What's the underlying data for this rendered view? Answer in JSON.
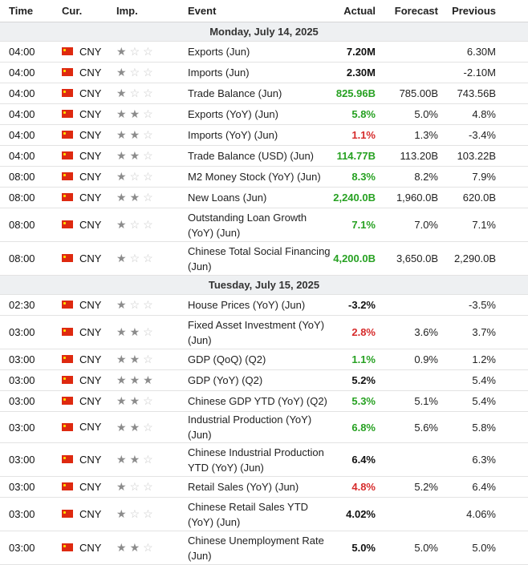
{
  "headers": {
    "time": "Time",
    "currency": "Cur.",
    "importance": "Imp.",
    "event": "Event",
    "actual": "Actual",
    "forecast": "Forecast",
    "previous": "Previous"
  },
  "colors": {
    "positive": "#27a122",
    "negative": "#d62b2b",
    "neutral": "#111111",
    "flag": "#de2910"
  },
  "icons": {
    "flag": "china-flag-icon",
    "star_full": "star-filled-icon",
    "star_empty": "star-empty-icon"
  },
  "days": [
    {
      "date": "Monday, July 14, 2025",
      "events": [
        {
          "time": "04:00",
          "currency": "CNY",
          "importance": 1,
          "event": "Exports (Jun)",
          "actual": "7.20M",
          "actual_status": "neutral",
          "forecast": "",
          "previous": "6.30M"
        },
        {
          "time": "04:00",
          "currency": "CNY",
          "importance": 1,
          "event": "Imports (Jun)",
          "actual": "2.30M",
          "actual_status": "neutral",
          "forecast": "",
          "previous": "-2.10M"
        },
        {
          "time": "04:00",
          "currency": "CNY",
          "importance": 1,
          "event": "Trade Balance (Jun)",
          "actual": "825.96B",
          "actual_status": "positive",
          "forecast": "785.00B",
          "previous": "743.56B"
        },
        {
          "time": "04:00",
          "currency": "CNY",
          "importance": 2,
          "event": "Exports (YoY) (Jun)",
          "actual": "5.8%",
          "actual_status": "positive",
          "forecast": "5.0%",
          "previous": "4.8%"
        },
        {
          "time": "04:00",
          "currency": "CNY",
          "importance": 2,
          "event": "Imports (YoY) (Jun)",
          "actual": "1.1%",
          "actual_status": "negative",
          "forecast": "1.3%",
          "previous": "-3.4%"
        },
        {
          "time": "04:00",
          "currency": "CNY",
          "importance": 2,
          "event": "Trade Balance (USD) (Jun)",
          "actual": "114.77B",
          "actual_status": "positive",
          "forecast": "113.20B",
          "previous": "103.22B"
        },
        {
          "time": "08:00",
          "currency": "CNY",
          "importance": 1,
          "event": "M2 Money Stock (YoY) (Jun)",
          "actual": "8.3%",
          "actual_status": "positive",
          "forecast": "8.2%",
          "previous": "7.9%"
        },
        {
          "time": "08:00",
          "currency": "CNY",
          "importance": 2,
          "event": "New Loans (Jun)",
          "actual": "2,240.0B",
          "actual_status": "positive",
          "forecast": "1,960.0B",
          "previous": "620.0B"
        },
        {
          "time": "08:00",
          "currency": "CNY",
          "importance": 1,
          "event": "Outstanding Loan Growth (YoY) (Jun)",
          "actual": "7.1%",
          "actual_status": "positive",
          "forecast": "7.0%",
          "previous": "7.1%"
        },
        {
          "time": "08:00",
          "currency": "CNY",
          "importance": 1,
          "event": "Chinese Total Social Financing (Jun)",
          "actual": "4,200.0B",
          "actual_status": "positive",
          "forecast": "3,650.0B",
          "previous": "2,290.0B"
        }
      ]
    },
    {
      "date": "Tuesday, July 15, 2025",
      "events": [
        {
          "time": "02:30",
          "currency": "CNY",
          "importance": 1,
          "event": "House Prices (YoY) (Jun)",
          "actual": "-3.2%",
          "actual_status": "neutral",
          "forecast": "",
          "previous": "-3.5%"
        },
        {
          "time": "03:00",
          "currency": "CNY",
          "importance": 2,
          "event": "Fixed Asset Investment (YoY) (Jun)",
          "actual": "2.8%",
          "actual_status": "negative",
          "forecast": "3.6%",
          "previous": "3.7%"
        },
        {
          "time": "03:00",
          "currency": "CNY",
          "importance": 2,
          "event": "GDP (QoQ) (Q2)",
          "actual": "1.1%",
          "actual_status": "positive",
          "forecast": "0.9%",
          "previous": "1.2%"
        },
        {
          "time": "03:00",
          "currency": "CNY",
          "importance": 3,
          "event": "GDP (YoY) (Q2)",
          "actual": "5.2%",
          "actual_status": "neutral",
          "forecast": "",
          "previous": "5.4%"
        },
        {
          "time": "03:00",
          "currency": "CNY",
          "importance": 2,
          "event": "Chinese GDP YTD (YoY) (Q2)",
          "actual": "5.3%",
          "actual_status": "positive",
          "forecast": "5.1%",
          "previous": "5.4%"
        },
        {
          "time": "03:00",
          "currency": "CNY",
          "importance": 2,
          "event": "Industrial Production (YoY) (Jun)",
          "actual": "6.8%",
          "actual_status": "positive",
          "forecast": "5.6%",
          "previous": "5.8%"
        },
        {
          "time": "03:00",
          "currency": "CNY",
          "importance": 2,
          "event": "Chinese Industrial Production YTD (YoY) (Jun)",
          "actual": "6.4%",
          "actual_status": "neutral",
          "forecast": "",
          "previous": "6.3%"
        },
        {
          "time": "03:00",
          "currency": "CNY",
          "importance": 1,
          "event": "Retail Sales (YoY) (Jun)",
          "actual": "4.8%",
          "actual_status": "negative",
          "forecast": "5.2%",
          "previous": "6.4%"
        },
        {
          "time": "03:00",
          "currency": "CNY",
          "importance": 1,
          "event": "Chinese Retail Sales YTD (YoY) (Jun)",
          "actual": "4.02%",
          "actual_status": "neutral",
          "forecast": "",
          "previous": "4.06%"
        },
        {
          "time": "03:00",
          "currency": "CNY",
          "importance": 2,
          "event": "Chinese Unemployment Rate (Jun)",
          "actual": "5.0%",
          "actual_status": "neutral",
          "forecast": "5.0%",
          "previous": "5.0%"
        }
      ]
    }
  ]
}
